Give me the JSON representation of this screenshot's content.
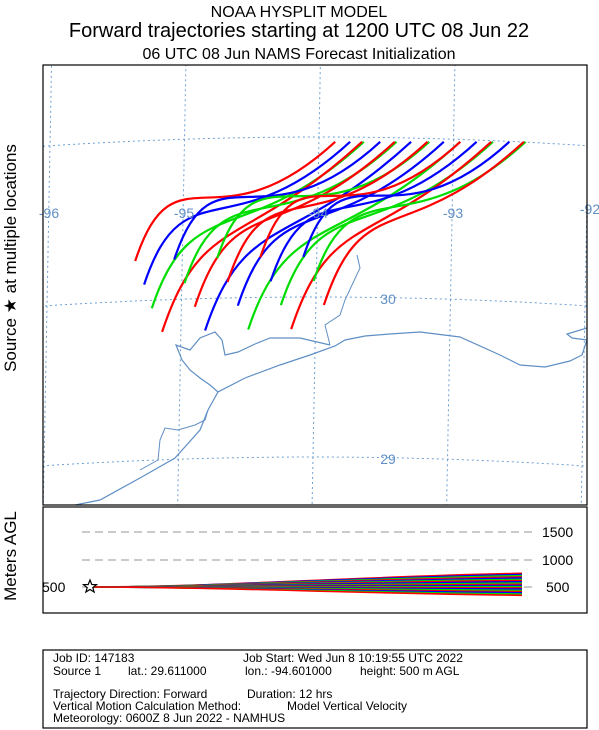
{
  "header": {
    "line1": "NOAA HYSPLIT MODEL",
    "line2": "Forward trajectories starting at 1200 UTC 08 Jun 22",
    "line3": "06 UTC 08 Jun     NAMS  Forecast Initialization"
  },
  "side_labels": {
    "source": "Source ★ at multiple locations",
    "meters": "Meters AGL"
  },
  "map": {
    "lon_labels": [
      "-96",
      "-95",
      "-94",
      "-93",
      "-92"
    ],
    "lat_labels": [
      "30",
      "29"
    ],
    "colors": {
      "grid": "#6f9fd0",
      "coast": "#5f8fc4",
      "frame": "#000000"
    }
  },
  "height_panel": {
    "ticks": [
      "1500",
      "1000",
      "500"
    ],
    "left_label": "500"
  },
  "info": {
    "job_id": "Job ID: 147183",
    "job_start": "Job Start: Wed Jun  8 10:19:55 UTC 2022",
    "source": "Source 1",
    "lat": "lat.: 29.611000",
    "lon": "lon.: -94.601000",
    "height": "height: 500 m AGL",
    "direction": "Trajectory Direction: Forward",
    "duration": "Duration: 12 hrs",
    "vertical_label": "Vertical Motion Calculation Method:",
    "vertical_value": "Model Vertical Velocity",
    "meteorology": "Meteorology: 0600Z  8 Jun 2022 - NAMHUS"
  },
  "chart_data": {
    "type": "line",
    "source": {
      "lat": 29.611,
      "lon": -94.601,
      "height_m": 500
    },
    "series_colors": [
      "#ff0000",
      "#0000ff",
      "#00dd00"
    ],
    "trajectory_start_lons": [
      -95.35,
      -95.28,
      -95.22,
      -95.14,
      -95.06,
      -94.98,
      -94.9,
      -94.82,
      -94.74,
      -94.66,
      -94.58,
      -94.5,
      -94.42,
      -94.34,
      -94.26,
      -94.18,
      -94.1,
      -94.02,
      -93.94
    ],
    "trajectory_start_lats": [
      30.25,
      30.1,
      29.95,
      29.8,
      30.25,
      30.1,
      29.95,
      29.8,
      30.25,
      30.1,
      29.95,
      29.8,
      30.25,
      30.1,
      29.95,
      29.8,
      30.25,
      30.1,
      29.95
    ],
    "trajectory_end_lats": [
      30.97,
      30.97,
      30.97,
      30.97,
      30.97,
      30.97,
      30.97,
      30.97,
      30.97,
      30.97,
      30.97,
      30.97,
      30.97,
      30.97,
      30.97,
      30.97,
      30.97,
      30.97,
      30.97
    ],
    "height_range_m": [
      350,
      750
    ],
    "yaxis_height_ticks": [
      500,
      1000,
      1500
    ]
  }
}
